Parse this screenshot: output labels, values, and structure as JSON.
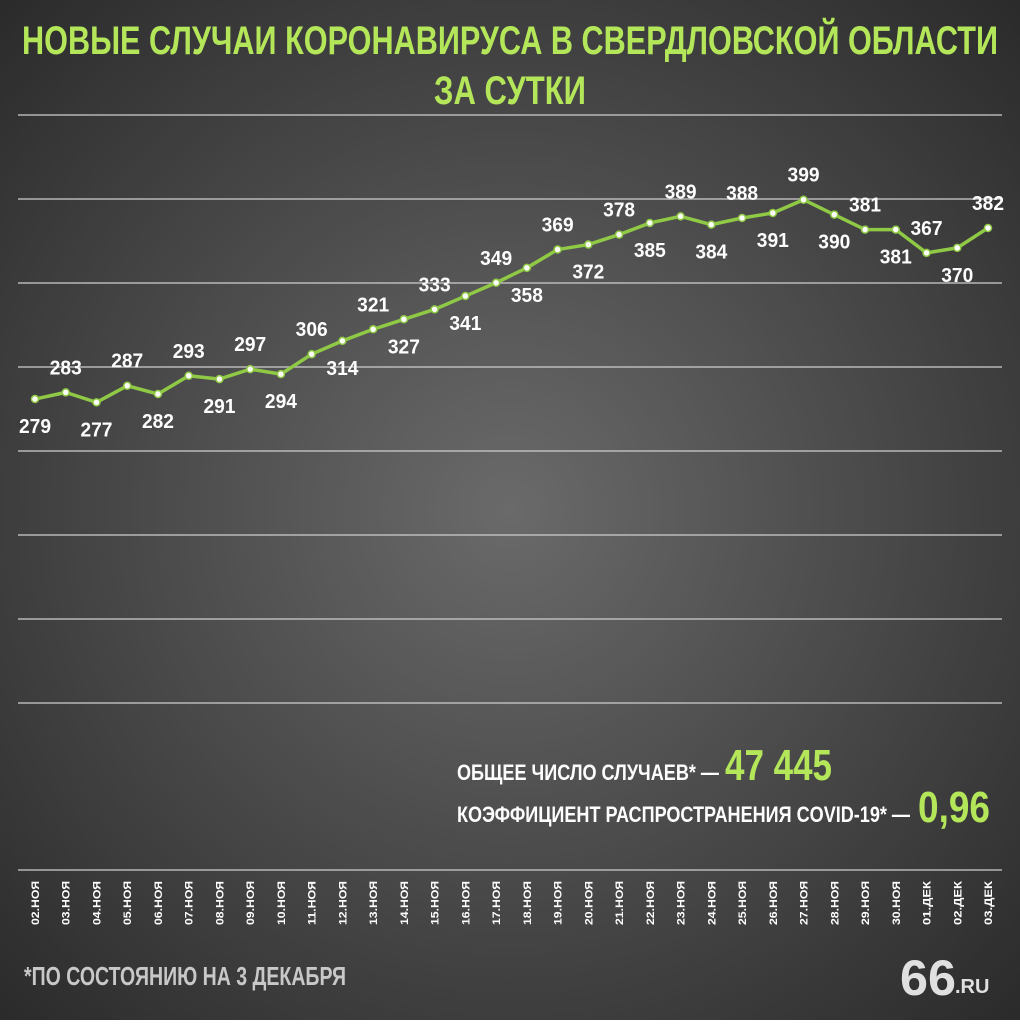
{
  "chart_data": {
    "type": "line",
    "title": [
      "НОВЫЕ СЛУЧАИ КОРОНАВИРУСА В СВЕРДЛОВСКОЙ ОБЛАСТИ",
      "ЗА СУТКИ"
    ],
    "categories": [
      "02.НОЯ",
      "03.НОЯ",
      "04.НОЯ",
      "05.НОЯ",
      "06.НОЯ",
      "07.НОЯ",
      "08.НОЯ",
      "09.НОЯ",
      "10.НОЯ",
      "11.НОЯ",
      "12.НОЯ",
      "13.НОЯ",
      "14.НОЯ",
      "15.НОЯ",
      "16.НОЯ",
      "17.НОЯ",
      "18.НОЯ",
      "19.НОЯ",
      "20.НОЯ",
      "21.НОЯ",
      "22.НОЯ",
      "23.НОЯ",
      "24.НОЯ",
      "25.НОЯ",
      "26.НОЯ",
      "27.НОЯ",
      "28.НОЯ",
      "29.НОЯ",
      "30.НОЯ",
      "01.ДЕК",
      "02.ДЕК",
      "03.ДЕК"
    ],
    "values": [
      279,
      283,
      277,
      287,
      282,
      293,
      291,
      297,
      294,
      306,
      314,
      321,
      327,
      333,
      341,
      349,
      358,
      369,
      372,
      378,
      385,
      389,
      384,
      388,
      391,
      399,
      390,
      381,
      381,
      367,
      370,
      382
    ],
    "color": "#8fc945",
    "ylim": [
      96,
      450
    ],
    "summary": [
      {
        "label": "ОБЩЕЕ ЧИСЛО СЛУЧАЕВ* —",
        "value": "47 445"
      },
      {
        "label": "КОЭФФИЦИЕНТ РАСПРОСТРАНЕНИЯ COVID-19* —",
        "value": "0,96"
      }
    ],
    "footnote": "*ПО СОСТОЯНИЮ НА 3 ДЕКАБРЯ",
    "logo": {
      "main": "66",
      "suffix": ".RU"
    }
  }
}
